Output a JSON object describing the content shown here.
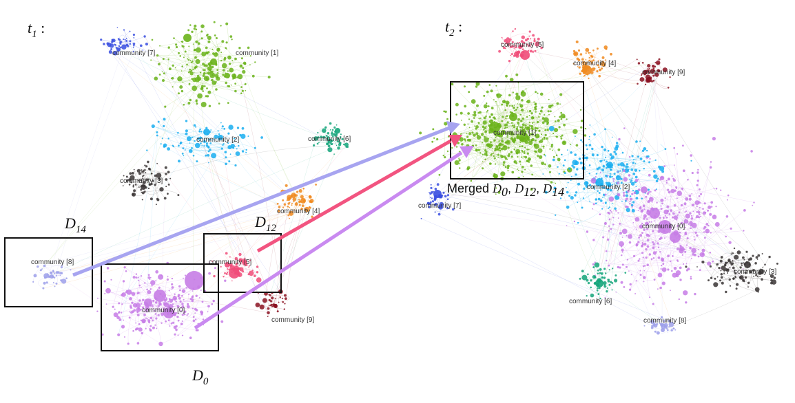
{
  "panels": {
    "t1": {
      "label": "t",
      "subscript": "1",
      "suffix": " :"
    },
    "t2": {
      "label": "t",
      "subscript": "2",
      "suffix": " :"
    }
  },
  "colors": {
    "0": "#c77de6",
    "1": "#6ab31a",
    "2": "#19aef0",
    "3": "#3a3535",
    "4": "#f08a1e",
    "5": "#f04c79",
    "6": "#14a57a",
    "7": "#3a4fe0",
    "8": "#9ea0ea",
    "9": "#8a1020",
    "arrow_d14": "#a7a4f0",
    "arrow_d12": "#f25480",
    "arrow_d0": "#c98af0"
  },
  "t1_communities": [
    {
      "id": "7",
      "label": "community [7]"
    },
    {
      "id": "1",
      "label": "community [1]"
    },
    {
      "id": "2",
      "label": "community [2]"
    },
    {
      "id": "6",
      "label": "community [6]"
    },
    {
      "id": "3",
      "label": "community [3]"
    },
    {
      "id": "4",
      "label": "community [4]"
    },
    {
      "id": "8",
      "label": "community [8]"
    },
    {
      "id": "5",
      "label": "community [5]"
    },
    {
      "id": "0",
      "label": "community [0]"
    },
    {
      "id": "9",
      "label": "community [9]"
    }
  ],
  "t2_communities": [
    {
      "id": "5",
      "label": "community [5]"
    },
    {
      "id": "4",
      "label": "community [4]"
    },
    {
      "id": "9",
      "label": "community [9]"
    },
    {
      "id": "1",
      "label": "community [1]"
    },
    {
      "id": "2",
      "label": "community [2]"
    },
    {
      "id": "7",
      "label": "community [7]"
    },
    {
      "id": "0",
      "label": "community [0]"
    },
    {
      "id": "3",
      "label": "community [3]"
    },
    {
      "id": "6",
      "label": "community [6]"
    },
    {
      "id": "8",
      "label": "community [8]"
    }
  ],
  "highlight_boxes": {
    "d14": {
      "label": "D",
      "subscript": "14"
    },
    "d12": {
      "label": "D",
      "subscript": "12"
    },
    "d0": {
      "label": "D",
      "subscript": "0"
    },
    "merged": {
      "prefix": "Merged ",
      "parts": [
        {
          "label": "D",
          "subscript": "0"
        },
        {
          "label": "D",
          "subscript": "12"
        },
        {
          "label": "D",
          "subscript": "14"
        }
      ]
    }
  }
}
